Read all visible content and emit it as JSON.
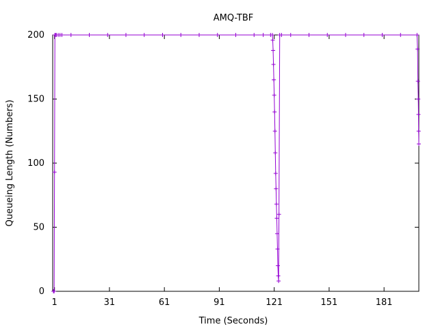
{
  "chart_data": {
    "type": "line",
    "title": "AMQ-TBF",
    "xlabel": "Time (Seconds)",
    "ylabel": "Queueing Length (Numbers)",
    "xlim": [
      0,
      200
    ],
    "ylim": [
      0,
      200
    ],
    "xticks": [
      1,
      31,
      61,
      91,
      121,
      151,
      181
    ],
    "yticks": [
      0,
      50,
      100,
      150,
      200
    ],
    "grid": false,
    "legend": "none",
    "colors": {
      "series": "#9400d3",
      "axis": "#000000",
      "text": "#000000"
    },
    "series": [
      {
        "marker": "plus",
        "x": [
          0.4,
          0.8,
          1.0,
          1.2,
          1.5,
          2,
          3,
          4,
          5,
          10,
          20,
          30,
          40,
          50,
          60,
          70,
          80,
          90,
          100,
          110,
          115,
          119,
          120,
          120.2,
          120.4,
          120.6,
          120.8,
          121,
          121.2,
          121.4,
          121.6,
          121.8,
          122,
          122.2,
          122.4,
          122.6,
          122.8,
          123,
          123.2,
          123.4,
          123.6,
          124,
          125,
          130,
          140,
          150,
          160,
          170,
          180,
          190,
          199,
          199.3,
          199.5,
          199.7,
          199.8,
          199.9,
          200
        ],
        "y": [
          0,
          0,
          93,
          200,
          200,
          200,
          200,
          200,
          200,
          200,
          200,
          200,
          200,
          200,
          200,
          200,
          200,
          200,
          200,
          200,
          200,
          200,
          200,
          196,
          188,
          177,
          165,
          153,
          140,
          125,
          108,
          92,
          80,
          68,
          57,
          45,
          33,
          20,
          12,
          8,
          60,
          200,
          200,
          200,
          200,
          200,
          200,
          200,
          200,
          200,
          200,
          189,
          164,
          150,
          138,
          125,
          115
        ]
      }
    ]
  }
}
